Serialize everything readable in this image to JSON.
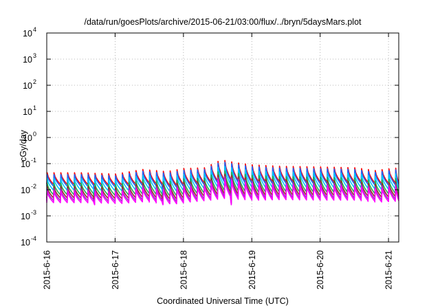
{
  "chart_data": {
    "type": "line",
    "title": "/data/run/goesPlots/archive/2015-06-21/03:00/flux/../bryn/5daysMars.plot",
    "xlabel": "Coordinated Universal Time (UTC)",
    "ylabel": "cGy/day",
    "yscale": "log",
    "ylim": [
      0.0001,
      10000
    ],
    "xlim_days": [
      0,
      5.15
    ],
    "grid": true,
    "legend": "none",
    "y_ticks": [
      {
        "base": "10",
        "exp": "-4",
        "value": 0.0001
      },
      {
        "base": "10",
        "exp": "-3",
        "value": 0.001
      },
      {
        "base": "10",
        "exp": "-2",
        "value": 0.01
      },
      {
        "base": "10",
        "exp": "-1",
        "value": 0.1
      },
      {
        "base": "10",
        "exp": "0",
        "value": 1
      },
      {
        "base": "10",
        "exp": "1",
        "value": 10
      },
      {
        "base": "10",
        "exp": "2",
        "value": 100
      },
      {
        "base": "10",
        "exp": "3",
        "value": 1000
      },
      {
        "base": "10",
        "exp": "4",
        "value": 10000
      }
    ],
    "x_ticks": [
      {
        "label": "2015-6-16",
        "day": 0
      },
      {
        "label": "2015-6-17",
        "day": 1
      },
      {
        "label": "2015-6-18",
        "day": 2
      },
      {
        "label": "2015-6-19",
        "day": 3
      },
      {
        "label": "2015-6-20",
        "day": 4
      },
      {
        "label": "2015-6-21",
        "day": 5
      }
    ],
    "sawtooth_period_days": 0.1,
    "series": [
      {
        "color": "#ff0000",
        "factor": 1.0
      },
      {
        "color": "#1e66ff",
        "factor": 0.85
      },
      {
        "color": "#00c8ff",
        "factor": 0.6
      },
      {
        "color": "#20b050",
        "factor": 0.4
      },
      {
        "color": "#a02828",
        "factor": 0.3
      },
      {
        "color": "#9632c8",
        "factor": 0.24
      },
      {
        "color": "#ff00ff",
        "factor": 0.2
      }
    ],
    "envelope": {
      "days": [
        0,
        0.5,
        1.0,
        1.4,
        1.75,
        2.0,
        2.3,
        2.55,
        2.75,
        3.0,
        3.4,
        4.0,
        4.5,
        4.8,
        5.15
      ],
      "peak": [
        0.045,
        0.045,
        0.04,
        0.06,
        0.05,
        0.065,
        0.07,
        0.14,
        0.11,
        0.09,
        0.08,
        0.075,
        0.07,
        0.055,
        0.07
      ],
      "trough": [
        0.016,
        0.016,
        0.015,
        0.018,
        0.014,
        0.017,
        0.02,
        0.024,
        0.022,
        0.02,
        0.021,
        0.02,
        0.02,
        0.017,
        0.019
      ]
    },
    "dips": [
      {
        "day": 0.7,
        "value": 0.0035
      },
      {
        "day": 1.7,
        "value": 0.0035
      },
      {
        "day": 2.7,
        "value": 0.0035
      }
    ]
  }
}
